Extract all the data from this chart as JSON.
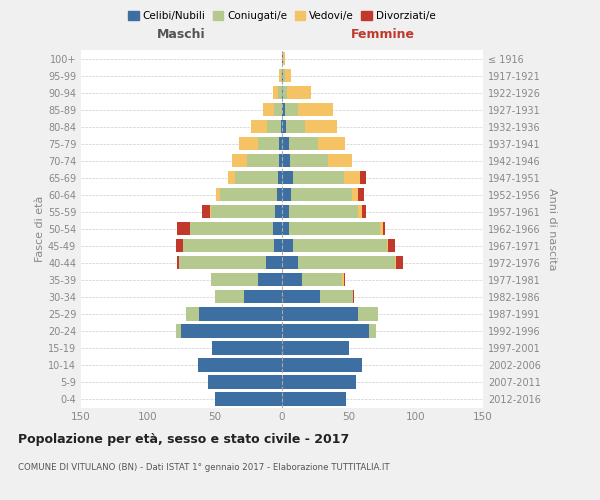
{
  "age_groups": [
    "0-4",
    "5-9",
    "10-14",
    "15-19",
    "20-24",
    "25-29",
    "30-34",
    "35-39",
    "40-44",
    "45-49",
    "50-54",
    "55-59",
    "60-64",
    "65-69",
    "70-74",
    "75-79",
    "80-84",
    "85-89",
    "90-94",
    "95-99",
    "100+"
  ],
  "birth_years": [
    "2012-2016",
    "2007-2011",
    "2002-2006",
    "1997-2001",
    "1992-1996",
    "1987-1991",
    "1982-1986",
    "1977-1981",
    "1972-1976",
    "1967-1971",
    "1962-1966",
    "1957-1961",
    "1952-1956",
    "1947-1951",
    "1942-1946",
    "1937-1941",
    "1932-1936",
    "1927-1931",
    "1922-1926",
    "1917-1921",
    "≤ 1916"
  ],
  "m_cel": [
    50,
    55,
    63,
    52,
    75,
    62,
    28,
    18,
    12,
    6,
    7,
    5,
    4,
    3,
    2,
    2,
    1,
    0,
    0,
    0,
    0
  ],
  "m_con": [
    0,
    0,
    0,
    0,
    4,
    10,
    22,
    35,
    65,
    68,
    62,
    48,
    42,
    32,
    24,
    16,
    10,
    6,
    3,
    1,
    0
  ],
  "m_ved": [
    0,
    0,
    0,
    0,
    0,
    0,
    0,
    0,
    0,
    0,
    0,
    1,
    3,
    5,
    11,
    14,
    12,
    8,
    4,
    1,
    0
  ],
  "m_div": [
    0,
    0,
    0,
    0,
    0,
    0,
    0,
    0,
    1,
    5,
    9,
    6,
    0,
    0,
    0,
    0,
    0,
    0,
    0,
    0,
    0
  ],
  "f_nub": [
    48,
    55,
    60,
    50,
    65,
    57,
    28,
    15,
    12,
    8,
    5,
    5,
    7,
    8,
    6,
    5,
    3,
    2,
    1,
    1,
    1
  ],
  "f_con": [
    0,
    0,
    0,
    0,
    5,
    15,
    25,
    30,
    72,
    70,
    68,
    52,
    45,
    38,
    28,
    22,
    14,
    10,
    3,
    1,
    0
  ],
  "f_ved": [
    0,
    0,
    0,
    0,
    0,
    0,
    0,
    1,
    1,
    1,
    2,
    3,
    5,
    12,
    18,
    20,
    24,
    26,
    18,
    5,
    1
  ],
  "f_div": [
    0,
    0,
    0,
    0,
    0,
    0,
    1,
    1,
    5,
    5,
    2,
    3,
    4,
    5,
    0,
    0,
    0,
    0,
    0,
    0,
    0
  ],
  "colors": {
    "celibe": "#3e6fa3",
    "coniugato": "#b5c98e",
    "vedovo": "#f5c264",
    "divorziato": "#c0392b"
  },
  "xlim": 150,
  "title": "Popolazione per età, sesso e stato civile - 2017",
  "subtitle": "COMUNE DI VITULANO (BN) - Dati ISTAT 1° gennaio 2017 - Elaborazione TUTTITALIA.IT",
  "ylabel_left": "Fasce di età",
  "ylabel_right": "Anni di nascita",
  "xlabel_maschi": "Maschi",
  "xlabel_femmine": "Femmine",
  "legend_labels": [
    "Celibi/Nubili",
    "Coniugati/e",
    "Vedovi/e",
    "Divorziati/e"
  ],
  "bg_color": "#f0f0f0",
  "plot_bg": "#ffffff"
}
